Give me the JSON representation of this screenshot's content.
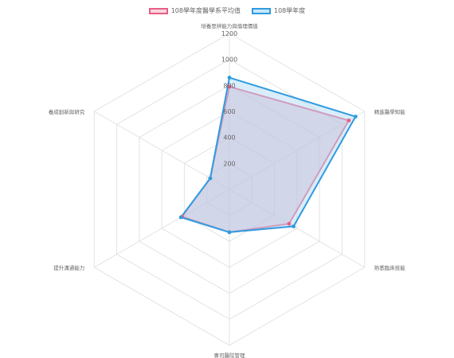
{
  "chart_data": {
    "type": "radar",
    "categories": [
      "培養思辨能力與倫理價值",
      "精進醫學知能",
      "熟悉臨床技能",
      "專司醫院管理",
      "提升溝通能力",
      "養成創新與研究"
    ],
    "series": [
      {
        "name": "108學年度醫學系平均值",
        "values": [
          790,
          1060,
          530,
          330,
          420,
          170
        ],
        "stroke": "#ea5d83",
        "fill": "rgba(222,150,180,0.45)",
        "legend_fill": "#f8d6e0"
      },
      {
        "name": "108學年度",
        "values": [
          860,
          1120,
          570,
          330,
          430,
          170
        ],
        "stroke": "#2f9be0",
        "fill": "rgba(180,220,245,0.5)",
        "legend_fill": "#c9e6f8"
      }
    ],
    "r_range": [
      0,
      1200
    ],
    "ticks": [
      "200",
      "400",
      "600",
      "800",
      "1000",
      "1200"
    ],
    "grid": true,
    "legend_position": "top"
  }
}
